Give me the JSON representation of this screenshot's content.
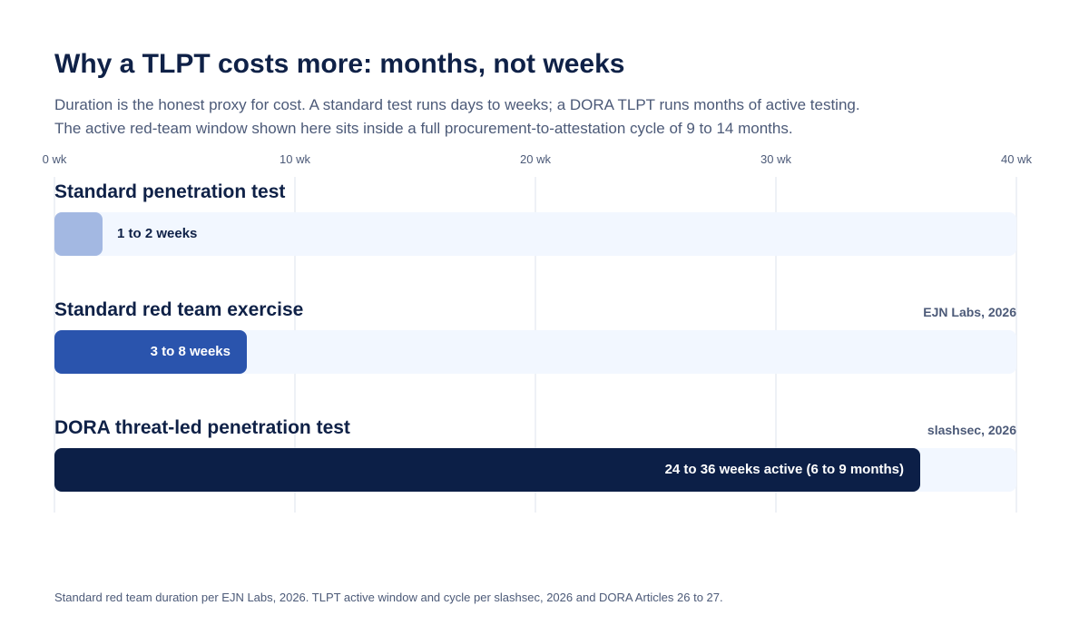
{
  "header": {
    "title": "Why a TLPT costs more: months, not weeks",
    "subtitle_line1": "Duration is the honest proxy for cost. A standard test runs days to weeks; a DORA TLPT runs months of active testing.",
    "subtitle_line2": "The active red-team window shown here sits inside a full procurement-to-attestation cycle of 9 to 14 months."
  },
  "chart_data": {
    "type": "bar",
    "orientation": "horizontal",
    "xlim": [
      0,
      40
    ],
    "x_ticks": [
      0,
      10,
      20,
      30,
      40
    ],
    "x_tick_labels": [
      "0 wk",
      "10 wk",
      "20 wk",
      "30 wk",
      "40 wk"
    ],
    "grid": true,
    "categories": [
      "Standard penetration test",
      "Standard red team exercise",
      "DORA threat-led penetration test"
    ],
    "values": [
      2,
      8,
      36
    ],
    "value_labels": [
      "1 to 2 weeks",
      "3 to 8 weeks",
      "24 to 36 weeks active (6 to 9 months)"
    ],
    "sources": [
      "",
      "EJN Labs, 2026",
      "slashsec, 2026"
    ],
    "colors": [
      "#a3b8e2",
      "#2a54ad",
      "#0c1f47"
    ],
    "track_color": "#f2f7ff"
  },
  "footnote": "Standard red team duration per EJN Labs, 2026. TLPT active window and cycle per slashsec, 2026 and DORA Articles 26 to 27."
}
